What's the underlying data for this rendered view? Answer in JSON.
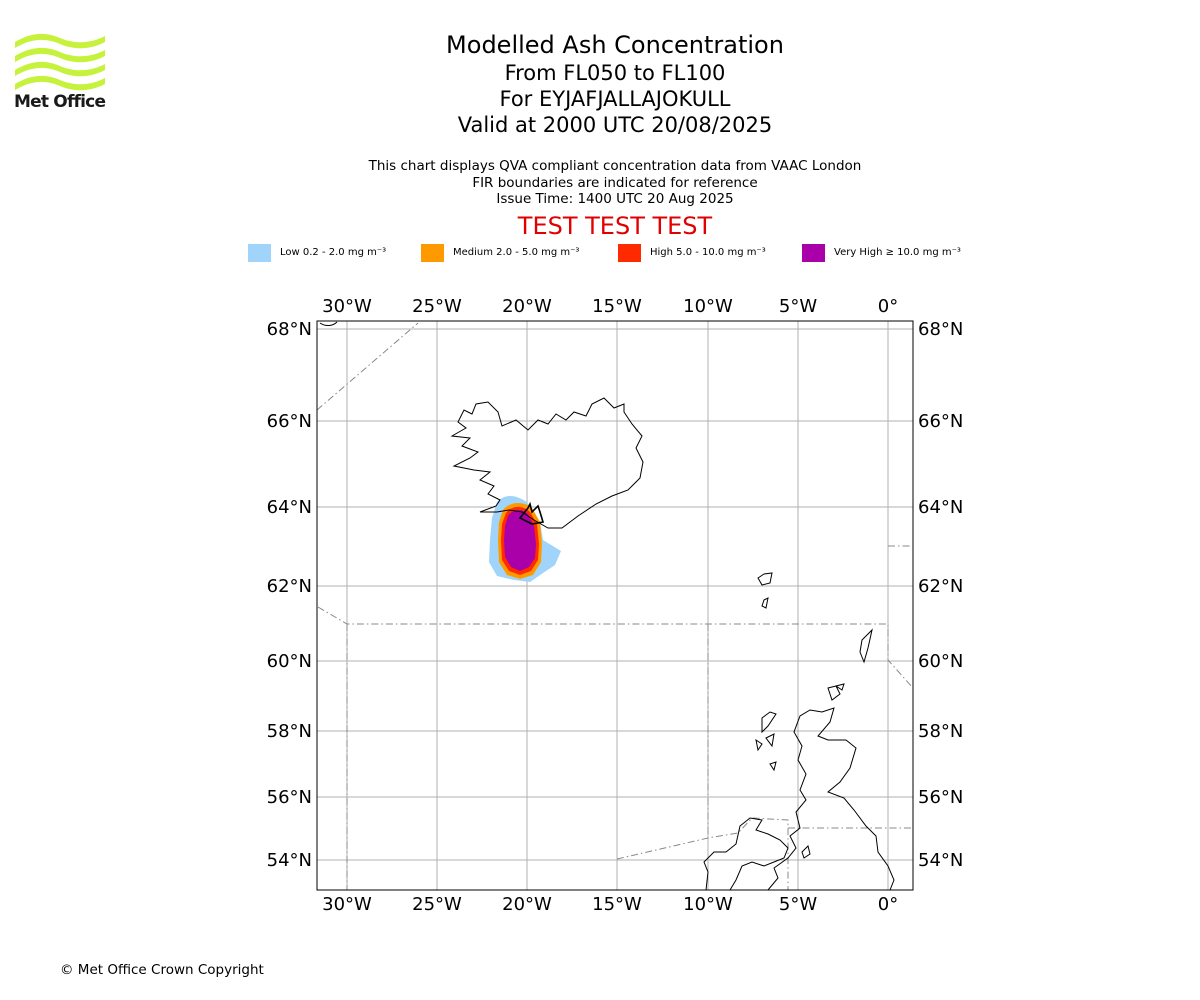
{
  "header": {
    "logo_text": "Met Office",
    "title": "Modelled Ash Concentration",
    "subtitle_levels": "From FL050 to FL100",
    "subtitle_volcano": "For EYJAFJALLAJOKULL",
    "subtitle_valid": "Valid at 2000 UTC 20/08/2025",
    "info_lines": [
      "This chart displays QVA compliant concentration data from VAAC London",
      "FIR boundaries are indicated for reference",
      "Issue Time: 1400 UTC 20 Aug 2025"
    ],
    "test_banner": "TEST TEST TEST"
  },
  "legend": [
    {
      "label": "Low 0.2 - 2.0 mg m⁻³",
      "color": "#a0d4fa"
    },
    {
      "label": "Medium 2.0 - 5.0 mg m⁻³",
      "color": "#ff9900"
    },
    {
      "label": "High 5.0 - 10.0 mg m⁻³",
      "color": "#ff2a00"
    },
    {
      "label": "Very High  ≥  10.0 mg m⁻³",
      "color": "#aa00aa"
    }
  ],
  "map": {
    "lon_ticks": [
      "30°W",
      "25°W",
      "20°W",
      "15°W",
      "10°W",
      "5°W",
      "0°"
    ],
    "lat_ticks": [
      "68°N",
      "66°N",
      "64°N",
      "62°N",
      "60°N",
      "58°N",
      "56°N",
      "54°N"
    ],
    "lon_range": [
      -31.7,
      1.4
    ],
    "lat_range": [
      53.0,
      68.2
    ],
    "colors": {
      "grid": "#b0b0b0",
      "coast": "#000000",
      "fir": "#888888",
      "low": "#a0d4fa",
      "medium": "#ff9900",
      "high": "#ff2a00",
      "very_high": "#aa00aa"
    }
  },
  "footer": {
    "copyright": "© Met Office Crown Copyright"
  }
}
